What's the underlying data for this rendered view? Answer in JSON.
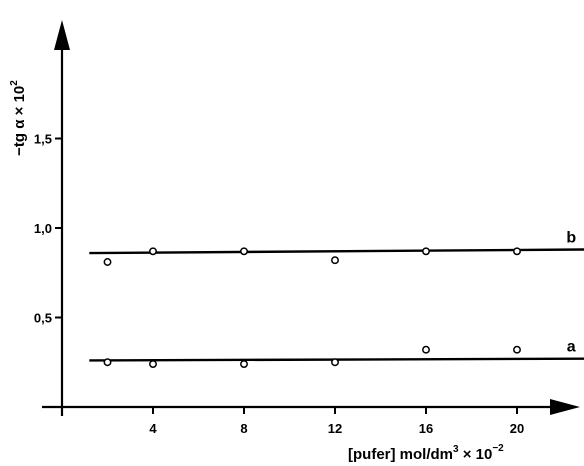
{
  "chart_data": {
    "type": "scatter",
    "title": "",
    "ylabel": {
      "main": "−tg α × 10",
      "exp": "2"
    },
    "xlabel": {
      "main": "[pufer] mol/dm",
      "unit_exp": "3",
      "mid": " × 10",
      "exp": "−2"
    },
    "xlim": [
      0,
      23
    ],
    "ylim": [
      0,
      1.95
    ],
    "xticks": [
      4,
      8,
      12,
      16,
      20
    ],
    "xtick_labels": [
      "4",
      "8",
      "12",
      "16",
      "20"
    ],
    "yticks": [
      0.5,
      1.0,
      1.5
    ],
    "ytick_labels": [
      "0,5",
      "1,0",
      "1,5"
    ],
    "grid": false,
    "series": [
      {
        "name": "a",
        "x": [
          2,
          4,
          8,
          12,
          16,
          20
        ],
        "y": [
          0.25,
          0.24,
          0.24,
          0.25,
          0.32,
          0.32
        ],
        "fit": {
          "x": [
            1.2,
            23
          ],
          "y": [
            0.26,
            0.27
          ]
        }
      },
      {
        "name": "b",
        "x": [
          2,
          4,
          8,
          12,
          16,
          20
        ],
        "y": [
          0.81,
          0.87,
          0.87,
          0.82,
          0.87,
          0.87
        ],
        "fit": {
          "x": [
            1.2,
            23
          ],
          "y": [
            0.86,
            0.88
          ]
        }
      }
    ]
  }
}
